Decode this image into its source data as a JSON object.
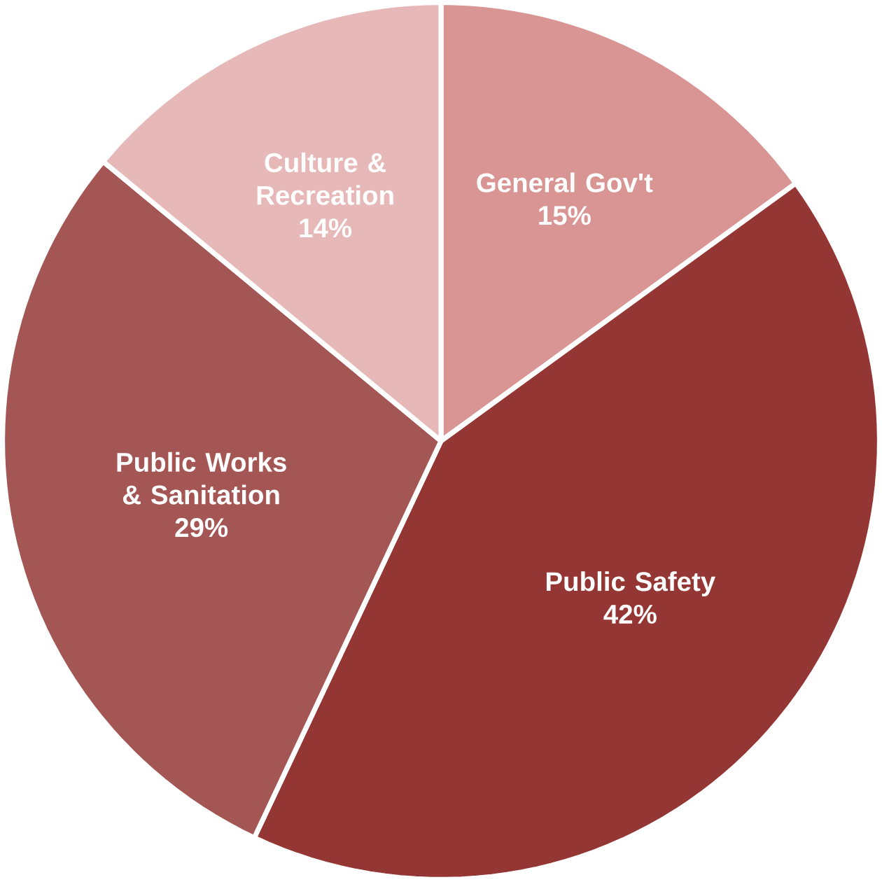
{
  "chart_data": {
    "type": "pie",
    "categories": [
      "General Gov't",
      "Public Safety",
      "Public Works & Sanitation",
      "Culture & Recreation"
    ],
    "values": [
      15,
      42,
      29,
      14
    ],
    "value_labels": [
      "15%",
      "42%",
      "29%",
      "14%"
    ],
    "colors": [
      "#d99594",
      "#943634",
      "#a45655",
      "#e6b8b7"
    ]
  }
}
